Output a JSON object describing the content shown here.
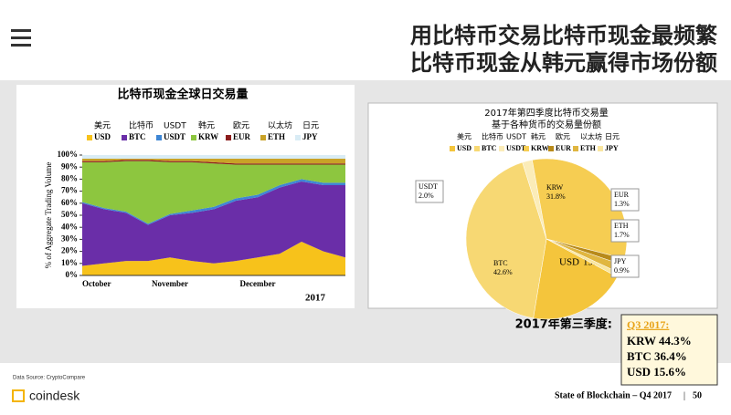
{
  "header": {
    "title_line1": "用比特币交易比特币现金最频繁",
    "title_line2": "比特币现金从韩元赢得市场份额"
  },
  "chart_data": [
    {
      "type": "stacked_area",
      "title": "比特币现金全球日交易量",
      "y_label": "% of Aggregate Trading Volume",
      "year": "2017",
      "legend_top": [
        "美元",
        "比特币",
        "USDT",
        "韩元",
        "欧元",
        "以太坊",
        "日元"
      ],
      "categories": [
        "October",
        null,
        null,
        null,
        "November",
        null,
        null,
        null,
        "December",
        null,
        null,
        null,
        null
      ],
      "series": [
        {
          "name": "USD",
          "color": "#f7c21b",
          "values": [
            8,
            10,
            12,
            12,
            15,
            12,
            10,
            12,
            15,
            18,
            28,
            20,
            15
          ]
        },
        {
          "name": "BTC",
          "color": "#6a2ea8",
          "values": [
            52,
            45,
            40,
            30,
            35,
            40,
            45,
            50,
            50,
            55,
            50,
            55,
            60
          ]
        },
        {
          "name": "USDT",
          "color": "#3e86d4",
          "values": [
            1,
            1,
            1,
            1,
            1,
            2,
            2,
            2,
            2,
            2,
            2,
            2,
            2
          ]
        },
        {
          "name": "KRW",
          "color": "#8dc63f",
          "values": [
            33,
            38,
            42,
            52,
            43,
            40,
            36,
            28,
            25,
            17,
            12,
            15,
            15
          ]
        },
        {
          "name": "EUR",
          "color": "#8b1c1c",
          "values": [
            1,
            1,
            1,
            1,
            1,
            1,
            1,
            1,
            1,
            1,
            1,
            1,
            1
          ]
        },
        {
          "name": "ETH",
          "color": "#c9a227",
          "values": [
            2,
            2,
            1,
            1,
            2,
            2,
            3,
            4,
            4,
            4,
            4,
            4,
            4
          ]
        },
        {
          "name": "JPY",
          "color": "#d9ecf5",
          "values": [
            3,
            3,
            3,
            3,
            3,
            3,
            3,
            3,
            3,
            3,
            3,
            3,
            3
          ]
        }
      ],
      "ylim": [
        0,
        100
      ],
      "yticks": [
        {
          "value": 0,
          "label": "0%"
        },
        {
          "value": 10,
          "label": "10%"
        },
        {
          "value": 20,
          "label": "20%"
        },
        {
          "value": 30,
          "label": "30%"
        },
        {
          "value": 40,
          "label": "40%"
        },
        {
          "value": 50,
          "label": "50%"
        },
        {
          "value": 60,
          "label": "60%"
        },
        {
          "value": 70,
          "label": "70%"
        },
        {
          "value": 80,
          "label": "80%"
        },
        {
          "value": 90,
          "label": "90%"
        },
        {
          "value": 100,
          "label": "100%"
        }
      ]
    },
    {
      "type": "pie",
      "title_line1": "2017年第四季度比特币交易量",
      "title_line2": "基于各种货币的交易量份额",
      "legend_top": [
        "美元",
        "比特币",
        "USDT",
        "韩元",
        "欧元",
        "以太坊",
        "日元"
      ],
      "categories": [
        "USD",
        "BTC",
        "USDT",
        "KRW",
        "EUR",
        "ETH",
        "JPY"
      ],
      "values": [
        19.8,
        42.6,
        2.0,
        31.8,
        1.3,
        1.7,
        0.9
      ],
      "value_labels": [
        "19.8%",
        "42.6%",
        "2.0%",
        "31.8%",
        "1.3%",
        "1.7%",
        "0.9%"
      ],
      "colors": [
        "#f4c53c",
        "#f7d873",
        "#fbecb8",
        "#f6cd52",
        "#b88a1a",
        "#e0b640",
        "#f9e6a0"
      ]
    }
  ],
  "q3_box": {
    "label": "2017年第三季度:",
    "heading": "Q3 2017:",
    "lines": [
      "KRW 44.3%",
      "BTC 36.4%",
      "USD 15.6%"
    ]
  },
  "footer": {
    "source": "Data Source: CryptoCompare",
    "brand": "coindesk",
    "report": "State of Blockchain – Q4 2017",
    "page": "50"
  }
}
